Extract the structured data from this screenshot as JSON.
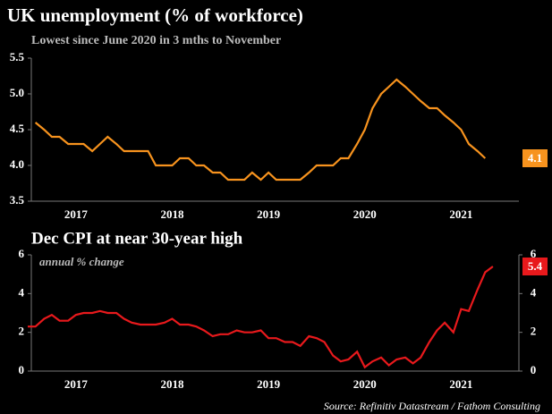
{
  "chart_data": [
    {
      "type": "line",
      "title": "UK unemployment (% of workforce)",
      "subtitle": "Lowest since June 2020 in 3 mths to November",
      "x": [
        2017.08,
        2017.17,
        2017.25,
        2017.33,
        2017.42,
        2017.5,
        2017.58,
        2017.67,
        2017.75,
        2017.83,
        2017.92,
        2018.0,
        2018.08,
        2018.17,
        2018.25,
        2018.33,
        2018.42,
        2018.5,
        2018.58,
        2018.67,
        2018.75,
        2018.83,
        2018.92,
        2019.0,
        2019.08,
        2019.17,
        2019.25,
        2019.33,
        2019.42,
        2019.5,
        2019.58,
        2019.67,
        2019.75,
        2019.83,
        2019.92,
        2020.0,
        2020.08,
        2020.17,
        2020.25,
        2020.33,
        2020.42,
        2020.5,
        2020.58,
        2020.67,
        2020.75,
        2020.83,
        2020.92,
        2021.0,
        2021.08,
        2021.17,
        2021.25,
        2021.33,
        2021.42,
        2021.5,
        2021.58,
        2021.67,
        2021.75
      ],
      "series": [
        {
          "name": "Unemployment",
          "color": "#f7931e",
          "values": [
            4.6,
            4.5,
            4.4,
            4.4,
            4.3,
            4.3,
            4.3,
            4.2,
            4.3,
            4.4,
            4.3,
            4.2,
            4.2,
            4.2,
            4.2,
            4.0,
            4.0,
            4.0,
            4.1,
            4.1,
            4.0,
            4.0,
            3.9,
            3.9,
            3.8,
            3.8,
            3.8,
            3.9,
            3.8,
            3.9,
            3.8,
            3.8,
            3.8,
            3.8,
            3.9,
            4.0,
            4.0,
            4.0,
            4.1,
            4.1,
            4.3,
            4.5,
            4.8,
            5.0,
            5.1,
            5.2,
            5.1,
            5.0,
            4.9,
            4.8,
            4.8,
            4.7,
            4.6,
            4.5,
            4.3,
            4.2,
            4.1
          ]
        }
      ],
      "xlim": [
        2017.0,
        2022.1
      ],
      "xticks": [
        {
          "value": 2017.5,
          "label": "2017"
        },
        {
          "value": 2018.5,
          "label": "2018"
        },
        {
          "value": 2019.5,
          "label": "2019"
        },
        {
          "value": 2020.5,
          "label": "2020"
        },
        {
          "value": 2021.5,
          "label": "2021"
        }
      ],
      "ylim": [
        3.5,
        5.5
      ],
      "yticks": [
        {
          "value": 3.5,
          "label": "3.5"
        },
        {
          "value": 4,
          "label": "4.0"
        },
        {
          "value": 4.5,
          "label": "4.5"
        },
        {
          "value": 5,
          "label": "5.0"
        },
        {
          "value": 5.5,
          "label": "5.5"
        }
      ]
    },
    {
      "type": "line",
      "title": "Dec CPI at near 30-year high",
      "annotation": "annual % change",
      "x": [
        2017.0,
        2017.08,
        2017.17,
        2017.25,
        2017.33,
        2017.42,
        2017.5,
        2017.58,
        2017.67,
        2017.75,
        2017.83,
        2017.92,
        2018.0,
        2018.08,
        2018.17,
        2018.25,
        2018.33,
        2018.42,
        2018.5,
        2018.58,
        2018.67,
        2018.75,
        2018.83,
        2018.92,
        2019.0,
        2019.08,
        2019.17,
        2019.25,
        2019.33,
        2019.42,
        2019.5,
        2019.58,
        2019.67,
        2019.75,
        2019.83,
        2019.92,
        2020.0,
        2020.08,
        2020.17,
        2020.25,
        2020.33,
        2020.42,
        2020.5,
        2020.58,
        2020.67,
        2020.75,
        2020.83,
        2020.92,
        2021.0,
        2021.08,
        2021.17,
        2021.25,
        2021.33,
        2021.42,
        2021.5,
        2021.58,
        2021.67,
        2021.75,
        2021.83
      ],
      "series": [
        {
          "name": "CPI",
          "color": "#e8191c",
          "values": [
            2.3,
            2.3,
            2.7,
            2.9,
            2.6,
            2.6,
            2.9,
            3.0,
            3.0,
            3.1,
            3.0,
            3.0,
            2.7,
            2.5,
            2.4,
            2.4,
            2.4,
            2.5,
            2.7,
            2.4,
            2.4,
            2.3,
            2.1,
            1.8,
            1.9,
            1.9,
            2.1,
            2.0,
            2.0,
            2.1,
            1.7,
            1.7,
            1.5,
            1.5,
            1.3,
            1.8,
            1.7,
            1.5,
            0.8,
            0.5,
            0.6,
            1.0,
            0.2,
            0.5,
            0.7,
            0.3,
            0.6,
            0.7,
            0.4,
            0.7,
            1.5,
            2.1,
            2.5,
            2.0,
            3.2,
            3.1,
            4.2,
            5.1,
            5.4
          ]
        }
      ],
      "xlim": [
        2017.0,
        2022.1
      ],
      "xticks": [
        {
          "value": 2017.5,
          "label": "2017"
        },
        {
          "value": 2018.5,
          "label": "2018"
        },
        {
          "value": 2019.5,
          "label": "2019"
        },
        {
          "value": 2020.5,
          "label": "2020"
        },
        {
          "value": 2021.5,
          "label": "2021"
        }
      ],
      "ylim": [
        0,
        6
      ],
      "yticks": [
        0,
        2,
        4,
        6
      ],
      "y2lim": [
        0,
        6
      ],
      "y2ticks": [
        0,
        2,
        4,
        6
      ],
      "source": "Source: Refinitiv Datastream / Fathom Consulting"
    }
  ]
}
